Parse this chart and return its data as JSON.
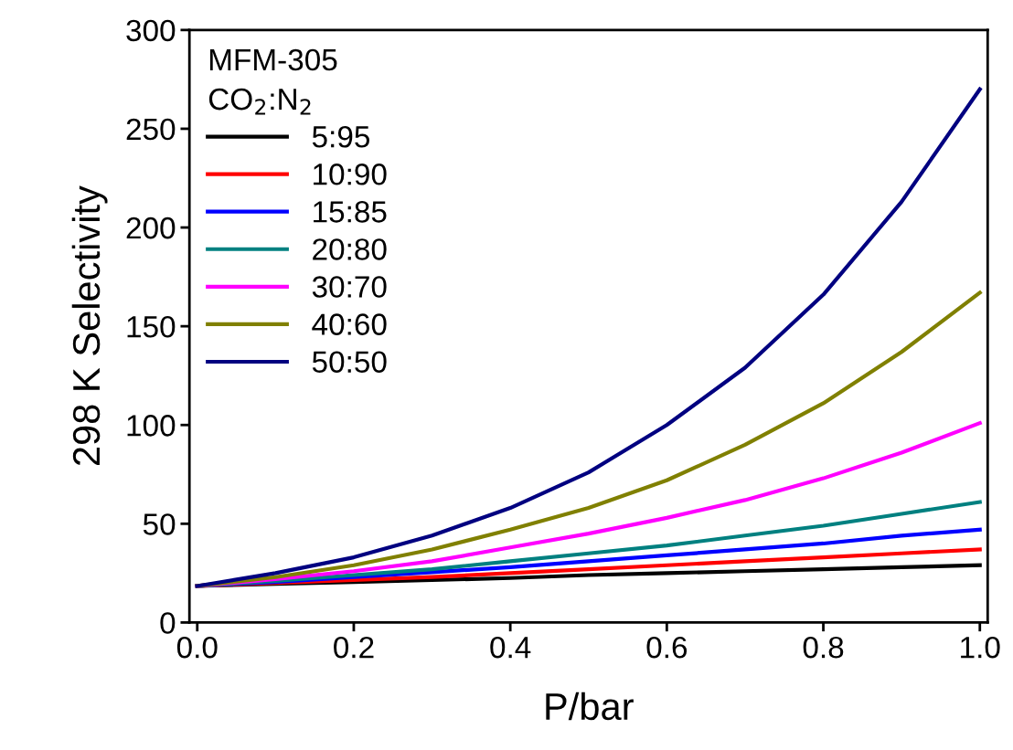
{
  "chart_data": {
    "type": "line",
    "xlabel": "P/bar",
    "ylabel": "298 K Selectivity",
    "legend_title": "MFM-305\nCO$_{2}$:N$_{2}$",
    "legend": "top left",
    "grid": false,
    "marker": "none",
    "line_style": "solid",
    "x": [
      0,
      0.1,
      0.2,
      0.3,
      0.4,
      0.5,
      0.6,
      0.7,
      0.8,
      0.9,
      1.0
    ],
    "xlim": [
      -0.01,
      1.01
    ],
    "ylim": [
      0,
      300
    ],
    "xticks": [
      {
        "value": 0,
        "label": "0.0"
      },
      {
        "value": 0.2,
        "label": "0.2"
      },
      {
        "value": 0.4,
        "label": "0.4"
      },
      {
        "value": 0.6,
        "label": "0.6"
      },
      {
        "value": 0.8,
        "label": "0.8"
      },
      {
        "value": 1.0,
        "label": "1.0"
      }
    ],
    "yticks": [
      0,
      50,
      100,
      150,
      200,
      250,
      300
    ],
    "series": [
      {
        "name": "5:95",
        "color": "#000000",
        "values": [
          18.5,
          19.5,
          20.5,
          21.5,
          22.5,
          24,
          25,
          26,
          27,
          28,
          29
        ]
      },
      {
        "name": "10:90",
        "color": "#ff0000",
        "values": [
          18.5,
          20,
          21.5,
          23,
          25,
          27,
          29,
          31,
          33,
          35,
          37
        ]
      },
      {
        "name": "15:85",
        "color": "#0000ff",
        "values": [
          18.5,
          20.5,
          23,
          25.5,
          28,
          31,
          34,
          37,
          40,
          44,
          47
        ]
      },
      {
        "name": "20:80",
        "color": "#008080",
        "values": [
          18.5,
          21,
          24,
          27,
          31,
          35,
          39,
          44,
          49,
          55,
          61
        ]
      },
      {
        "name": "30:70",
        "color": "#ff00ff",
        "values": [
          18.5,
          22,
          26,
          31,
          38,
          45,
          53,
          62,
          73,
          86,
          101
        ]
      },
      {
        "name": "40:60",
        "color": "#808000",
        "values": [
          18.5,
          23,
          29,
          37,
          47,
          58,
          72,
          90,
          111,
          137,
          167
        ]
      },
      {
        "name": "50:50",
        "color": "#000080",
        "values": [
          18.5,
          25,
          33,
          44,
          58,
          76,
          100,
          129,
          166,
          213,
          270
        ]
      }
    ]
  }
}
